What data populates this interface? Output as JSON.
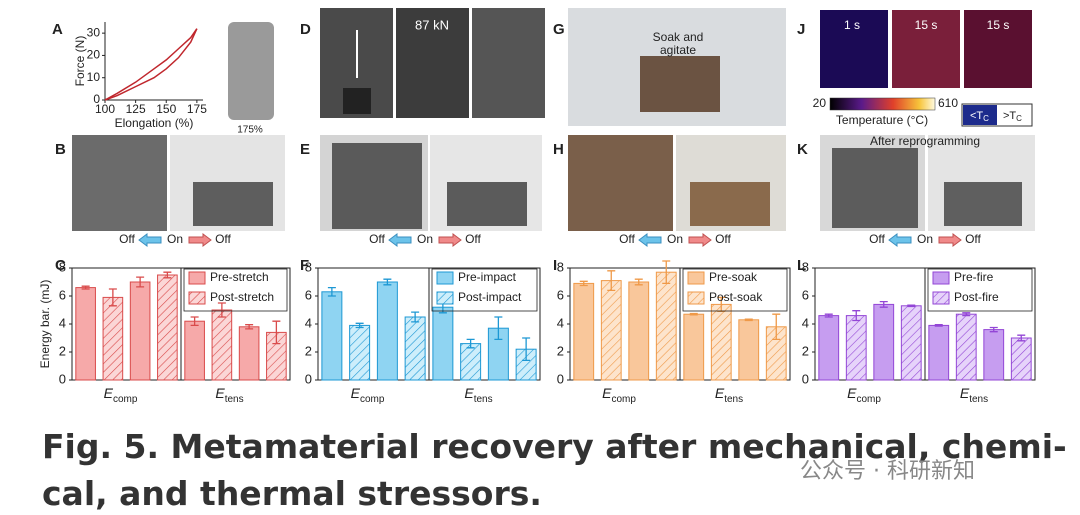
{
  "panel_letters": [
    "A",
    "B",
    "C",
    "D",
    "E",
    "F",
    "G",
    "H",
    "I",
    "J",
    "K",
    "L"
  ],
  "image_labels": {
    "a_strain": "175%",
    "d_force": "87 kN",
    "g_text": [
      "Soak and",
      "agitate"
    ],
    "j_times": [
      "1 s",
      "15 s",
      "15 s"
    ],
    "j_colorbar": {
      "min": 20,
      "max": 610,
      "label": "Temperature (°C)"
    },
    "j_states": [
      {
        "symbol": "<T",
        "sub": "C"
      },
      {
        "symbol": ">T",
        "sub": "C"
      }
    ],
    "k_text": "After reprogramming"
  },
  "switch_labels": [
    "Off",
    "On",
    "Off"
  ],
  "chart_data": [
    {
      "type": "line",
      "xlabel": "Elongation (%)",
      "ylabel": "Force (N)",
      "xlim": [
        100,
        180
      ],
      "ylim": [
        0,
        35
      ],
      "xticks": [
        100,
        125,
        150,
        175
      ],
      "yticks": [
        0,
        10,
        20,
        30
      ],
      "series": [
        {
          "color": "#c0272d",
          "x": [
            100,
            110,
            125,
            140,
            150,
            160,
            170,
            175
          ],
          "values": [
            0,
            3,
            8,
            14,
            18,
            23,
            28,
            32
          ]
        },
        {
          "color": "#c0272d",
          "x": [
            175,
            170,
            160,
            150,
            140,
            125,
            110,
            100
          ],
          "values": [
            32,
            26,
            19,
            14,
            10,
            6,
            2,
            0
          ]
        }
      ]
    },
    {
      "type": "bar",
      "ylabel": "Energy bar. (mJ)",
      "ylim": [
        0,
        8
      ],
      "yticks": [
        0,
        2,
        4,
        6,
        8
      ],
      "groups": [
        {
          "symbol": "E",
          "sub": "comp"
        },
        {
          "symbol": "E",
          "sub": "tens"
        }
      ],
      "series": [
        {
          "name": "Pre-stretch",
          "color": "#f6a9a9",
          "edgecolor": "#d94b4b",
          "hatch": false,
          "values": [
            6.6,
            7.0,
            4.2,
            3.8
          ],
          "errors": [
            0.1,
            0.35,
            0.3,
            0.15
          ]
        },
        {
          "name": "Post-stretch",
          "color": "#fbd6d6",
          "edgecolor": "#d94b4b",
          "hatch": true,
          "values": [
            5.9,
            7.5,
            5.0,
            3.4
          ],
          "errors": [
            0.6,
            0.2,
            0.5,
            0.8
          ]
        }
      ]
    },
    {
      "type": "bar",
      "ylim": [
        0,
        8
      ],
      "yticks": [
        0,
        2,
        4,
        6,
        8
      ],
      "groups": [
        {
          "symbol": "E",
          "sub": "comp"
        },
        {
          "symbol": "E",
          "sub": "tens"
        }
      ],
      "series": [
        {
          "name": "Pre-impact",
          "color": "#8fd4f2",
          "edgecolor": "#1d98d4",
          "hatch": false,
          "values": [
            6.3,
            7.0,
            5.2,
            3.7
          ],
          "errors": [
            0.3,
            0.2,
            0.4,
            0.8
          ]
        },
        {
          "name": "Post-impact",
          "color": "#cdeefb",
          "edgecolor": "#1d98d4",
          "hatch": true,
          "values": [
            3.9,
            4.5,
            2.6,
            2.2
          ],
          "errors": [
            0.15,
            0.35,
            0.3,
            0.8
          ]
        }
      ]
    },
    {
      "type": "bar",
      "ylim": [
        0,
        8
      ],
      "yticks": [
        0,
        2,
        4,
        6,
        8
      ],
      "groups": [
        {
          "symbol": "E",
          "sub": "comp"
        },
        {
          "symbol": "E",
          "sub": "tens"
        }
      ],
      "series": [
        {
          "name": "Pre-soak",
          "color": "#f9c79b",
          "edgecolor": "#ef9948",
          "hatch": false,
          "values": [
            6.9,
            7.0,
            4.7,
            4.3
          ],
          "errors": [
            0.15,
            0.2,
            0.05,
            0.05
          ]
        },
        {
          "name": "Post-soak",
          "color": "#fde4cc",
          "edgecolor": "#ef9948",
          "hatch": true,
          "values": [
            7.1,
            7.7,
            5.4,
            3.8
          ],
          "errors": [
            0.7,
            0.8,
            0.5,
            0.9
          ]
        }
      ]
    },
    {
      "type": "bar",
      "ylim": [
        0,
        8
      ],
      "yticks": [
        0,
        2,
        4,
        6,
        8
      ],
      "groups": [
        {
          "symbol": "E",
          "sub": "comp"
        },
        {
          "symbol": "E",
          "sub": "tens"
        }
      ],
      "series": [
        {
          "name": "Pre-fire",
          "color": "#c69df0",
          "edgecolor": "#9346d6",
          "hatch": false,
          "values": [
            4.6,
            5.4,
            3.9,
            3.6
          ],
          "errors": [
            0.1,
            0.2,
            0.05,
            0.15
          ]
        },
        {
          "name": "Post-fire",
          "color": "#e6d3fa",
          "edgecolor": "#9346d6",
          "hatch": true,
          "values": [
            4.6,
            5.3,
            4.7,
            3.0
          ],
          "errors": [
            0.35,
            0.05,
            0.1,
            0.2
          ]
        }
      ]
    }
  ],
  "caption": [
    "Fig. 5. Metamaterial recovery after mechanical, chemi-",
    "cal, and thermal stressors."
  ],
  "watermark": "公众号 · 科研新知"
}
